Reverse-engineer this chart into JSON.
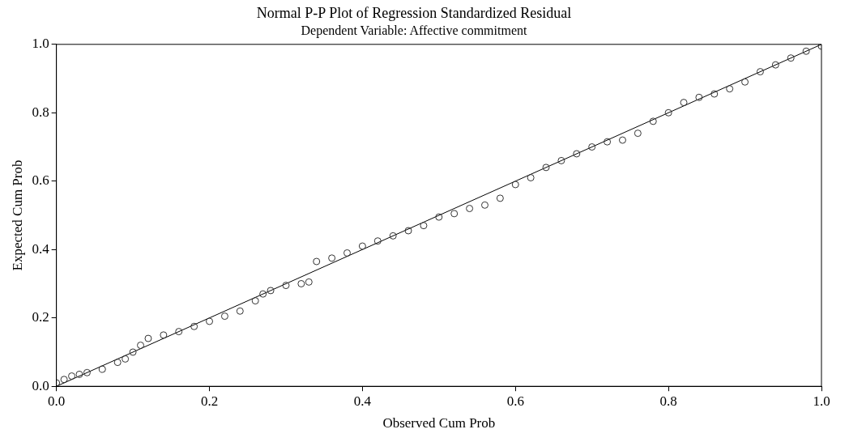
{
  "chart_data": {
    "type": "scatter",
    "title": "Normal P-P Plot of Regression Standardized Residual",
    "subtitle": "Dependent Variable: Affective commitment",
    "xlabel": "Observed Cum Prob",
    "ylabel": "Expected Cum Prob",
    "xlim": [
      0,
      1
    ],
    "ylim": [
      0,
      1
    ],
    "xticks": [
      {
        "value": 0,
        "label": "0.0"
      },
      {
        "value": 0.2,
        "label": "0.2"
      },
      {
        "value": 0.4,
        "label": "0.4"
      },
      {
        "value": 0.6,
        "label": "0.6"
      },
      {
        "value": 0.8,
        "label": "0.8"
      },
      {
        "value": 1,
        "label": "1.0"
      }
    ],
    "yticks": [
      {
        "value": 0,
        "label": "0.0"
      },
      {
        "value": 0.2,
        "label": "0.2"
      },
      {
        "value": 0.4,
        "label": "0.4"
      },
      {
        "value": 0.6,
        "label": "0.6"
      },
      {
        "value": 0.8,
        "label": "0.8"
      },
      {
        "value": 1,
        "label": "1.0"
      }
    ],
    "grid": false,
    "legend": false,
    "marker": "circle",
    "series": [
      {
        "color": "#333333",
        "x": [
          0.0,
          0.01,
          0.02,
          0.03,
          0.04,
          0.06,
          0.08,
          0.09,
          0.1,
          0.11,
          0.12,
          0.14,
          0.16,
          0.18,
          0.2,
          0.22,
          0.24,
          0.26,
          0.27,
          0.28,
          0.3,
          0.32,
          0.33,
          0.34,
          0.36,
          0.38,
          0.4,
          0.42,
          0.44,
          0.46,
          0.48,
          0.5,
          0.52,
          0.54,
          0.56,
          0.58,
          0.6,
          0.62,
          0.64,
          0.66,
          0.68,
          0.7,
          0.72,
          0.74,
          0.76,
          0.78,
          0.8,
          0.82,
          0.84,
          0.86,
          0.88,
          0.9,
          0.92,
          0.94,
          0.96,
          0.98,
          1.0
        ],
        "values": [
          0.01,
          0.02,
          0.03,
          0.035,
          0.04,
          0.05,
          0.07,
          0.08,
          0.1,
          0.12,
          0.14,
          0.15,
          0.16,
          0.175,
          0.19,
          0.205,
          0.22,
          0.25,
          0.27,
          0.28,
          0.295,
          0.3,
          0.305,
          0.365,
          0.375,
          0.39,
          0.41,
          0.425,
          0.44,
          0.455,
          0.47,
          0.495,
          0.505,
          0.52,
          0.53,
          0.55,
          0.59,
          0.61,
          0.64,
          0.66,
          0.68,
          0.7,
          0.715,
          0.72,
          0.74,
          0.775,
          0.8,
          0.83,
          0.845,
          0.855,
          0.87,
          0.89,
          0.92,
          0.94,
          0.96,
          0.98,
          0.995
        ]
      },
      {
        "type": "line",
        "color": "#000000",
        "marker": "none",
        "x": [
          0,
          1
        ],
        "values": [
          0,
          1
        ]
      }
    ]
  }
}
